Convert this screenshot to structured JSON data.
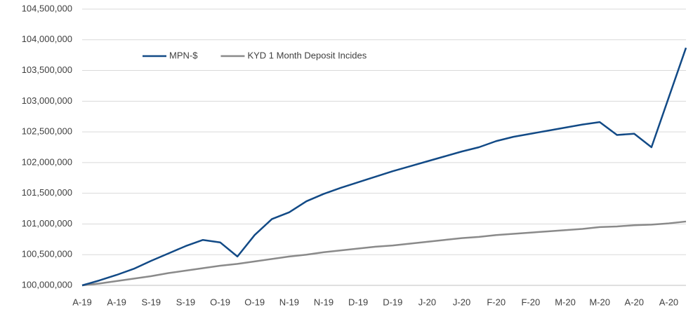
{
  "chart_data": {
    "type": "line",
    "categories": [
      "A-19",
      null,
      "A-19",
      null,
      "S-19",
      null,
      "S-19",
      null,
      "O-19",
      null,
      "O-19",
      null,
      "N-19",
      null,
      "N-19",
      null,
      "D-19",
      null,
      "D-19",
      null,
      "J-20",
      null,
      "J-20",
      null,
      "F-20",
      null,
      "F-20",
      null,
      "M-20",
      null,
      "M-20",
      null,
      "A-20",
      null,
      "A-20",
      null
    ],
    "series": [
      {
        "name": "MPN-$",
        "color": "#124a86",
        "values": [
          100000000,
          100080000,
          100170000,
          100270000,
          100400000,
          100520000,
          100640000,
          100740000,
          100700000,
          100470000,
          100820000,
          101080000,
          101190000,
          101370000,
          101490000,
          101590000,
          101680000,
          101770000,
          101860000,
          101940000,
          102020000,
          102100000,
          102180000,
          102250000,
          102350000,
          102420000,
          102470000,
          102520000,
          102570000,
          102620000,
          102660000,
          102450000,
          102470000,
          102250000,
          103060000,
          103870000
        ]
      },
      {
        "name": "KYD 1 Month Deposit Incides",
        "color": "#8a8a8a",
        "values": [
          100000000,
          100030000,
          100070000,
          100110000,
          100150000,
          100200000,
          100240000,
          100280000,
          100320000,
          100350000,
          100390000,
          100430000,
          100470000,
          100500000,
          100540000,
          100570000,
          100600000,
          100630000,
          100650000,
          100680000,
          100710000,
          100740000,
          100770000,
          100790000,
          100820000,
          100840000,
          100860000,
          100880000,
          100900000,
          100920000,
          100950000,
          100960000,
          100980000,
          100990000,
          101010000,
          101040000
        ]
      }
    ],
    "ylim": [
      100000000,
      104500000
    ],
    "yticks": [
      {
        "value": 100000000,
        "label": "100,000,000"
      },
      {
        "value": 100500000,
        "label": "100,500,000"
      },
      {
        "value": 101000000,
        "label": "101,000,000"
      },
      {
        "value": 101500000,
        "label": "101,500,000"
      },
      {
        "value": 102000000,
        "label": "102,000,000"
      },
      {
        "value": 102500000,
        "label": "102,500,000"
      },
      {
        "value": 103000000,
        "label": "103,000,000"
      },
      {
        "value": 103500000,
        "label": "103,500,000"
      },
      {
        "value": 104000000,
        "label": "104,000,000"
      },
      {
        "value": 104500000,
        "label": "104,500,000"
      }
    ],
    "grid": true
  }
}
